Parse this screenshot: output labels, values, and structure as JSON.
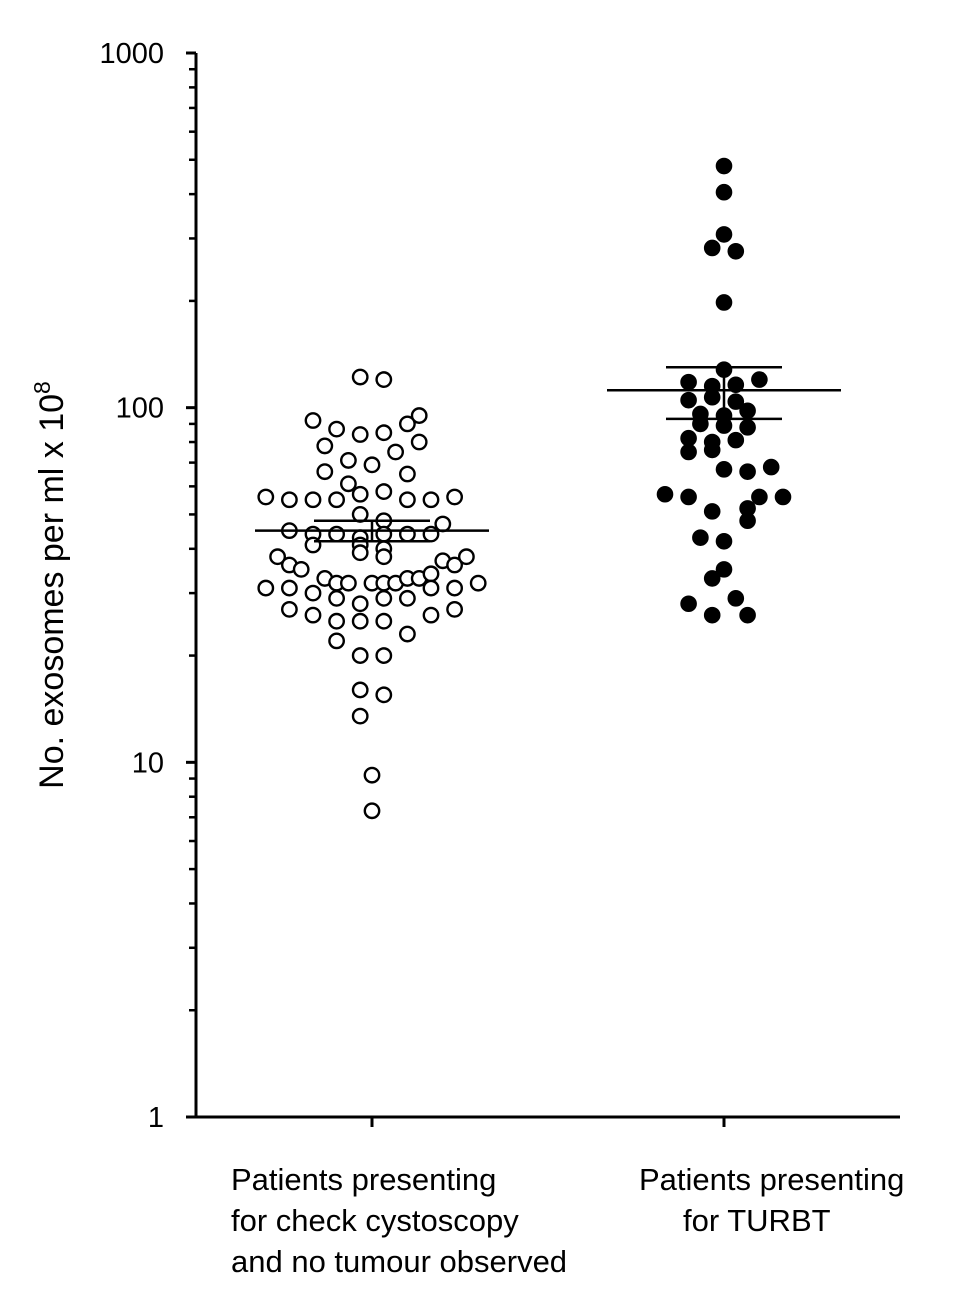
{
  "chart_data": {
    "type": "scatter",
    "ylabel": "No. exosomes per ml x 10",
    "ylabel_superscript": "8",
    "yscale": "log",
    "ylim": [
      1,
      1000
    ],
    "yticks": [
      {
        "value": 1,
        "label": "1"
      },
      {
        "value": 10,
        "label": "10"
      },
      {
        "value": 100,
        "label": "100"
      },
      {
        "value": 1000,
        "label": "1000"
      }
    ],
    "grid": false,
    "categories": [
      [
        "Patients presenting",
        "for check cystoscopy",
        "and no tumour observed"
      ],
      [
        "Patients presenting",
        "for TURBT"
      ]
    ],
    "series": [
      {
        "marker": "open-circle",
        "color": "#000000",
        "mean": 45,
        "sem": [
          42,
          48
        ],
        "points": [
          [
            -1,
            122
          ],
          [
            1,
            120
          ],
          [
            -5,
            92
          ],
          [
            4,
            95
          ],
          [
            -3,
            87
          ],
          [
            -1,
            84
          ],
          [
            1,
            85
          ],
          [
            3,
            90
          ],
          [
            -4,
            78
          ],
          [
            2,
            75
          ],
          [
            4,
            80
          ],
          [
            -2,
            71
          ],
          [
            0,
            69
          ],
          [
            -4,
            66
          ],
          [
            3,
            65
          ],
          [
            -2,
            61
          ],
          [
            1,
            58
          ],
          [
            -1,
            57
          ],
          [
            -9,
            56
          ],
          [
            -7,
            55
          ],
          [
            -5,
            55
          ],
          [
            -3,
            55
          ],
          [
            3,
            55
          ],
          [
            5,
            55
          ],
          [
            7,
            56
          ],
          [
            -1,
            50
          ],
          [
            1,
            48
          ],
          [
            6,
            47
          ],
          [
            -7,
            45
          ],
          [
            -5,
            44
          ],
          [
            -3,
            44
          ],
          [
            -1,
            43
          ],
          [
            1,
            44
          ],
          [
            3,
            44
          ],
          [
            5,
            44
          ],
          [
            -5,
            41
          ],
          [
            -1,
            41
          ],
          [
            1,
            40
          ],
          [
            -1,
            39
          ],
          [
            1,
            38
          ],
          [
            -8,
            38
          ],
          [
            -7,
            36
          ],
          [
            -6,
            35
          ],
          [
            6,
            37
          ],
          [
            7,
            36
          ],
          [
            8,
            38
          ],
          [
            -4,
            33
          ],
          [
            -3,
            32
          ],
          [
            -2,
            32
          ],
          [
            0,
            32
          ],
          [
            1,
            32
          ],
          [
            2,
            32
          ],
          [
            3,
            33
          ],
          [
            4,
            33
          ],
          [
            5,
            34
          ],
          [
            -9,
            31
          ],
          [
            -7,
            31
          ],
          [
            -5,
            30
          ],
          [
            5,
            31
          ],
          [
            7,
            31
          ],
          [
            9,
            32
          ],
          [
            -3,
            29
          ],
          [
            -1,
            28
          ],
          [
            1,
            29
          ],
          [
            3,
            29
          ],
          [
            -7,
            27
          ],
          [
            -5,
            26
          ],
          [
            5,
            26
          ],
          [
            7,
            27
          ],
          [
            -3,
            25
          ],
          [
            -1,
            25
          ],
          [
            1,
            25
          ],
          [
            3,
            23
          ],
          [
            -3,
            22
          ],
          [
            -1,
            20
          ],
          [
            1,
            20
          ],
          [
            -1,
            16
          ],
          [
            1,
            15.5
          ],
          [
            -1,
            13.5
          ],
          [
            0,
            9.2
          ],
          [
            0,
            7.3
          ]
        ]
      },
      {
        "marker": "filled-circle",
        "color": "#000000",
        "mean": 112,
        "sem": [
          93,
          130
        ],
        "points": [
          [
            0,
            480
          ],
          [
            0,
            405
          ],
          [
            0,
            308
          ],
          [
            -1,
            282
          ],
          [
            1,
            276
          ],
          [
            0,
            198
          ],
          [
            0,
            128
          ],
          [
            -3,
            118
          ],
          [
            -1,
            115
          ],
          [
            1,
            116
          ],
          [
            3,
            120
          ],
          [
            -3,
            105
          ],
          [
            -1,
            107
          ],
          [
            1,
            104
          ],
          [
            -2,
            96
          ],
          [
            0,
            95
          ],
          [
            2,
            98
          ],
          [
            -2,
            90
          ],
          [
            0,
            89
          ],
          [
            2,
            88
          ],
          [
            -3,
            82
          ],
          [
            -1,
            80
          ],
          [
            1,
            81
          ],
          [
            -3,
            75
          ],
          [
            -1,
            76
          ],
          [
            0,
            67
          ],
          [
            2,
            66
          ],
          [
            4,
            68
          ],
          [
            -5,
            57
          ],
          [
            -3,
            56
          ],
          [
            3,
            56
          ],
          [
            5,
            56
          ],
          [
            -1,
            51
          ],
          [
            2,
            52
          ],
          [
            2,
            48
          ],
          [
            -2,
            43
          ],
          [
            0,
            42
          ],
          [
            0,
            35
          ],
          [
            -1,
            33
          ],
          [
            -3,
            28
          ],
          [
            1,
            29
          ],
          [
            -1,
            26
          ],
          [
            2,
            26
          ]
        ]
      }
    ]
  }
}
